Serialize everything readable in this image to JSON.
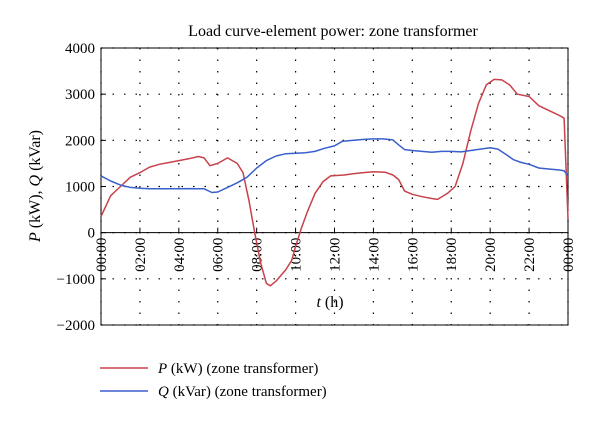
{
  "chart_data": {
    "type": "line",
    "title": "Load curve-element power: zone transformer",
    "xlabel": {
      "var": "t",
      "unit": " (h)"
    },
    "ylabel": {
      "p": "P",
      "p_unit": " (kW), ",
      "q": "Q",
      "q_unit": " (kVar)"
    },
    "xlim": [
      0,
      24
    ],
    "ylim": [
      -2000,
      4000
    ],
    "grid": true,
    "legend_position": "bottom-left",
    "x_ticks": [
      {
        "value": 0,
        "label": "00:00"
      },
      {
        "value": 2,
        "label": "02:00"
      },
      {
        "value": 4,
        "label": "04:00"
      },
      {
        "value": 6,
        "label": "06:00"
      },
      {
        "value": 8,
        "label": "08:00"
      },
      {
        "value": 10,
        "label": "10:00"
      },
      {
        "value": 12,
        "label": "12:00"
      },
      {
        "value": 14,
        "label": "14:00"
      },
      {
        "value": 16,
        "label": "16:00"
      },
      {
        "value": 18,
        "label": "18:00"
      },
      {
        "value": 20,
        "label": "20:00"
      },
      {
        "value": 22,
        "label": "22:00"
      },
      {
        "value": 24,
        "label": "00:00"
      }
    ],
    "y_ticks": [
      {
        "value": 4000,
        "label": "4000"
      },
      {
        "value": 3000,
        "label": "3000"
      },
      {
        "value": 2000,
        "label": "2000"
      },
      {
        "value": 1000,
        "label": "1000"
      },
      {
        "value": 0,
        "label": "0"
      },
      {
        "value": -1000,
        "label": "−1000"
      },
      {
        "value": -2000,
        "label": "−2000"
      }
    ],
    "series": [
      {
        "name": "P",
        "legend_var": "P",
        "legend_rest": " (kW) (zone transformer)",
        "color": "#c8414b",
        "points": [
          [
            0,
            350
          ],
          [
            0.5,
            800
          ],
          [
            1,
            1000
          ],
          [
            1.5,
            1200
          ],
          [
            2,
            1300
          ],
          [
            2.5,
            1420
          ],
          [
            3,
            1480
          ],
          [
            3.5,
            1520
          ],
          [
            4,
            1560
          ],
          [
            4.5,
            1600
          ],
          [
            5,
            1650
          ],
          [
            5.3,
            1620
          ],
          [
            5.6,
            1450
          ],
          [
            6,
            1500
          ],
          [
            6.5,
            1620
          ],
          [
            7,
            1500
          ],
          [
            7.3,
            1300
          ],
          [
            7.6,
            700
          ],
          [
            7.9,
            0
          ],
          [
            8.2,
            -650
          ],
          [
            8.5,
            -1100
          ],
          [
            8.7,
            -1150
          ],
          [
            9,
            -1050
          ],
          [
            9.5,
            -800
          ],
          [
            9.8,
            -600
          ],
          [
            10,
            -300
          ],
          [
            10.3,
            100
          ],
          [
            10.6,
            450
          ],
          [
            11,
            850
          ],
          [
            11.4,
            1100
          ],
          [
            11.8,
            1230
          ],
          [
            12.5,
            1250
          ],
          [
            13,
            1280
          ],
          [
            13.5,
            1300
          ],
          [
            14,
            1320
          ],
          [
            14.6,
            1310
          ],
          [
            15,
            1250
          ],
          [
            15.3,
            1150
          ],
          [
            15.6,
            900
          ],
          [
            16,
            830
          ],
          [
            16.5,
            780
          ],
          [
            17,
            740
          ],
          [
            17.3,
            720
          ],
          [
            17.8,
            850
          ],
          [
            18.2,
            1000
          ],
          [
            18.6,
            1500
          ],
          [
            19,
            2200
          ],
          [
            19.4,
            2800
          ],
          [
            19.8,
            3200
          ],
          [
            20.2,
            3320
          ],
          [
            20.6,
            3310
          ],
          [
            21,
            3200
          ],
          [
            21.4,
            3000
          ],
          [
            22,
            2950
          ],
          [
            22.5,
            2750
          ],
          [
            23,
            2650
          ],
          [
            23.5,
            2550
          ],
          [
            23.8,
            2480
          ],
          [
            24,
            300
          ]
        ]
      },
      {
        "name": "Q",
        "legend_var": "Q",
        "legend_rest": " (kVar) (zone transformer)",
        "color": "#3a5fcd",
        "points": [
          [
            0,
            1230
          ],
          [
            0.5,
            1120
          ],
          [
            1,
            1030
          ],
          [
            1.5,
            980
          ],
          [
            2,
            960
          ],
          [
            2.5,
            950
          ],
          [
            3,
            950
          ],
          [
            3.5,
            950
          ],
          [
            4,
            950
          ],
          [
            4.5,
            955
          ],
          [
            5,
            950
          ],
          [
            5.3,
            950
          ],
          [
            5.7,
            870
          ],
          [
            6,
            880
          ],
          [
            6.5,
            980
          ],
          [
            7,
            1080
          ],
          [
            7.5,
            1200
          ],
          [
            8,
            1400
          ],
          [
            8.5,
            1560
          ],
          [
            9,
            1660
          ],
          [
            9.5,
            1710
          ],
          [
            10,
            1720
          ],
          [
            10.5,
            1730
          ],
          [
            11,
            1760
          ],
          [
            11.5,
            1830
          ],
          [
            12,
            1880
          ],
          [
            12.4,
            1980
          ],
          [
            13,
            2000
          ],
          [
            13.5,
            2020
          ],
          [
            14,
            2030
          ],
          [
            14.5,
            2030
          ],
          [
            15,
            2010
          ],
          [
            15.3,
            1900
          ],
          [
            15.6,
            1800
          ],
          [
            16,
            1780
          ],
          [
            16.5,
            1760
          ],
          [
            17,
            1740
          ],
          [
            17.5,
            1760
          ],
          [
            18,
            1760
          ],
          [
            18.5,
            1750
          ],
          [
            19,
            1780
          ],
          [
            19.5,
            1810
          ],
          [
            20,
            1840
          ],
          [
            20.4,
            1810
          ],
          [
            20.8,
            1700
          ],
          [
            21.2,
            1580
          ],
          [
            21.6,
            1520
          ],
          [
            22,
            1480
          ],
          [
            22.5,
            1400
          ],
          [
            23,
            1380
          ],
          [
            23.5,
            1360
          ],
          [
            23.8,
            1340
          ],
          [
            24,
            1230
          ]
        ]
      }
    ]
  }
}
